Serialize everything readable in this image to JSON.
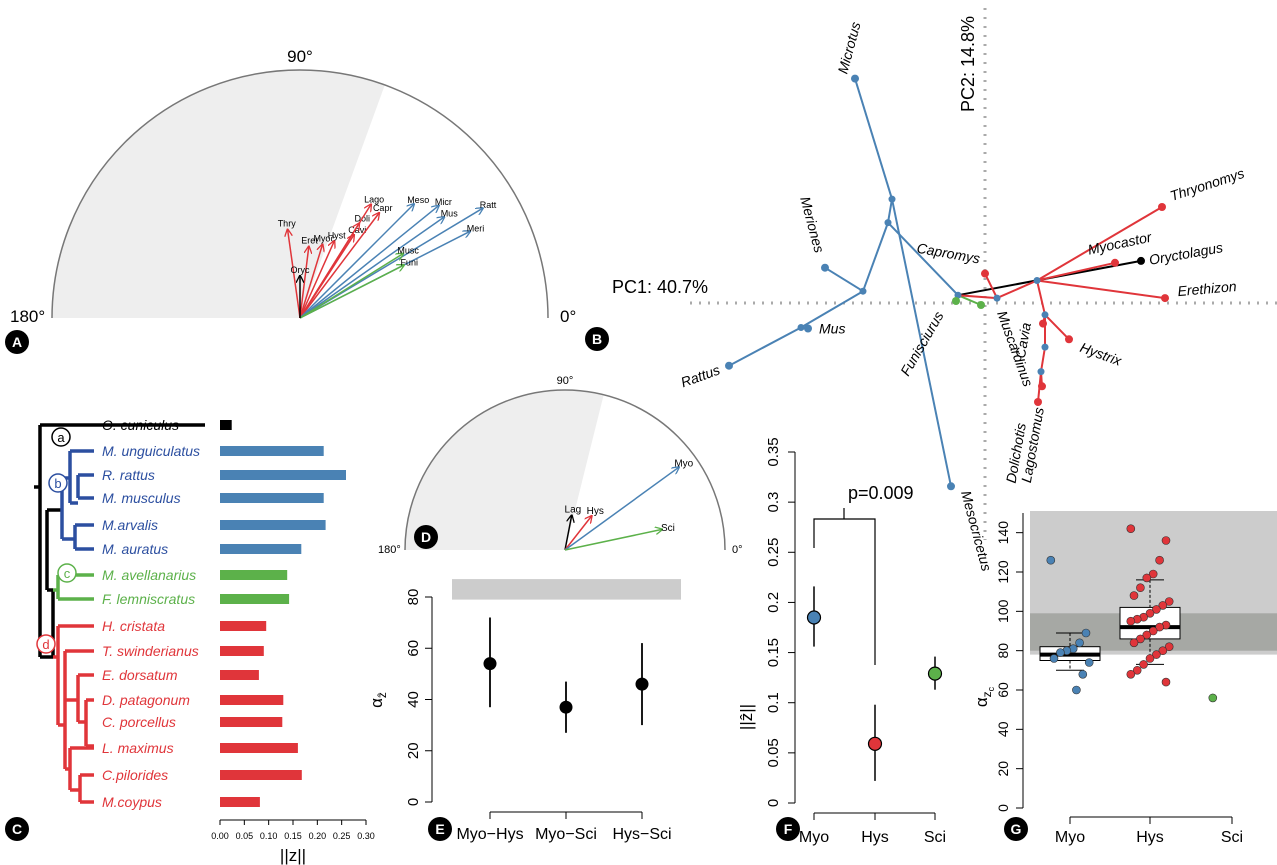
{
  "colors": {
    "myo": "#4a82b4",
    "hys": "#e0353a",
    "sci": "#5cb14a",
    "lag": "#000000",
    "shade": "#eeeeee",
    "grey_band": "#cccccc",
    "grey_dark": "#a6a8a4"
  },
  "panel_labels": [
    "A",
    "B",
    "C",
    "D",
    "E",
    "F",
    "G"
  ],
  "chart_data": [
    {
      "panel": "A",
      "type": "vector-semicircle",
      "angle_labels": {
        "top": "90°",
        "left": "180°",
        "right": "0°"
      },
      "shaded_sector_deg": [
        70,
        180
      ],
      "vectors": [
        {
          "label": "Thry",
          "angle": 98,
          "length": 0.36,
          "group": "hys"
        },
        {
          "label": "Eret",
          "angle": 83,
          "length": 0.29,
          "group": "hys"
        },
        {
          "label": "Myoc",
          "angle": 73,
          "length": 0.31,
          "group": "hys"
        },
        {
          "label": "Hyst",
          "angle": 66,
          "length": 0.34,
          "group": "hys"
        },
        {
          "label": "Cavi",
          "angle": 57,
          "length": 0.4,
          "group": "hys"
        },
        {
          "label": "Doli",
          "angle": 58,
          "length": 0.45,
          "group": "hys"
        },
        {
          "label": "Capr",
          "angle": 53,
          "length": 0.53,
          "group": "hys"
        },
        {
          "label": "Lago",
          "angle": 58,
          "length": 0.54,
          "group": "hys"
        },
        {
          "label": "Meso",
          "angle": 45,
          "length": 0.65,
          "group": "myo"
        },
        {
          "label": "Micr",
          "angle": 39,
          "length": 0.72,
          "group": "myo"
        },
        {
          "label": "Mus",
          "angle": 35,
          "length": 0.71,
          "group": "myo"
        },
        {
          "label": "Ratt",
          "angle": 31,
          "length": 0.86,
          "group": "myo"
        },
        {
          "label": "Meri",
          "angle": 27,
          "length": 0.77,
          "group": "myo"
        },
        {
          "label": "Musc",
          "angle": 32,
          "length": 0.49,
          "group": "sci"
        },
        {
          "label": "Funi",
          "angle": 27,
          "length": 0.47,
          "group": "sci"
        },
        {
          "label": "Oryc",
          "angle": 90,
          "length": 0.17,
          "group": "lag"
        }
      ]
    },
    {
      "panel": "B",
      "type": "scatter",
      "xlabel": "PC1: 40.7%",
      "ylabel": "PC2: 14.8%",
      "points": [
        {
          "name": "Microtus",
          "x": -1.3,
          "y": 2.29,
          "group": "myo"
        },
        {
          "name": "Meriones",
          "x": -1.6,
          "y": 0.36,
          "group": "myo"
        },
        {
          "name": "Mus",
          "x": -1.77,
          "y": -0.26,
          "group": "myo"
        },
        {
          "name": "Rattus",
          "x": -2.56,
          "y": -0.64,
          "group": "myo"
        },
        {
          "name": "Mesocricetus",
          "x": -0.34,
          "y": -1.87,
          "group": "myo"
        },
        {
          "name": "Funisciurus",
          "x": -0.29,
          "y": 0.02,
          "group": "sci"
        },
        {
          "name": "Muscardinus",
          "x": -0.04,
          "y": -0.02,
          "group": "sci"
        },
        {
          "name": "Capromys",
          "x": 0.0,
          "y": 0.3,
          "group": "hys"
        },
        {
          "name": "Thryonomys",
          "x": 1.77,
          "y": 0.98,
          "group": "hys"
        },
        {
          "name": "Myocastor",
          "x": 1.3,
          "y": 0.41,
          "group": "hys"
        },
        {
          "name": "Erethizon",
          "x": 1.8,
          "y": 0.05,
          "group": "hys"
        },
        {
          "name": "Hystrix",
          "x": 0.84,
          "y": -0.37,
          "group": "hys"
        },
        {
          "name": "Cavia",
          "x": 0.58,
          "y": -0.21,
          "group": "hys"
        },
        {
          "name": "Dolichotis",
          "x": 0.53,
          "y": -1.01,
          "group": "hys"
        },
        {
          "name": "Lagostomus",
          "x": 0.57,
          "y": -0.85,
          "group": "hys"
        },
        {
          "name": "Oryctolagus",
          "x": 1.56,
          "y": 0.43,
          "group": "lag"
        }
      ],
      "labeled": [
        "Microtus",
        "Meriones",
        "Mus",
        "Rattus",
        "Mesocricetus",
        "Funisciurus",
        "Muscardinus",
        "Capromys",
        "Thryonomys",
        "Myocastor",
        "Oryctolagus",
        "Erethizon",
        "Hystrix",
        "Cavia",
        "Dolichotis",
        "Lagostomus"
      ]
    },
    {
      "panel": "C",
      "type": "bar",
      "clade_labels": [
        "a",
        "b",
        "c",
        "d"
      ],
      "categories": [
        "O. cuniculus",
        "M. unguiculatus",
        "R. rattus",
        "M. musculus",
        "M.arvalis",
        "M. auratus",
        "M. avellanarius",
        "F. lemniscratus",
        "H. cristata",
        "T. swinderianus",
        "E. dorsatum",
        "D. patagonum",
        "C. porcellus",
        "L. maximus",
        "C.pilorides",
        "M.coypus"
      ],
      "groups": [
        "lag",
        "myo",
        "myo",
        "myo",
        "myo",
        "myo",
        "sci",
        "sci",
        "hys",
        "hys",
        "hys",
        "hys",
        "hys",
        "hys",
        "hys",
        "hys"
      ],
      "values": [
        0.024,
        0.213,
        0.259,
        0.213,
        0.217,
        0.167,
        0.138,
        0.142,
        0.095,
        0.09,
        0.08,
        0.13,
        0.128,
        0.16,
        0.168,
        0.082
      ],
      "xlim": [
        0,
        0.3
      ],
      "xticks": [
        "0.00",
        "0.05",
        "0.10",
        "0.15",
        "0.20",
        "0.25",
        "0.30"
      ],
      "xlabel": "||z||"
    },
    {
      "panel": "D",
      "type": "vector-semicircle",
      "angle_labels": {
        "top": "90°",
        "left": "180°",
        "right": "0°"
      },
      "shaded_sector_deg": [
        76,
        180
      ],
      "vectors": [
        {
          "label": "Lag",
          "angle": 79,
          "length": 0.22,
          "group": "lag"
        },
        {
          "label": "Hys",
          "angle": 52,
          "length": 0.27,
          "group": "hys"
        },
        {
          "label": "Myo",
          "angle": 36,
          "length": 0.88,
          "group": "myo"
        },
        {
          "label": "Sci",
          "angle": 12,
          "length": 0.62,
          "group": "sci"
        }
      ]
    },
    {
      "panel": "E",
      "type": "scatter",
      "categories": [
        "Myo−Hys",
        "Myo−Sci",
        "Hys−Sci"
      ],
      "values": [
        54,
        37,
        46
      ],
      "lower": [
        37,
        27,
        30
      ],
      "upper": [
        72,
        47,
        62
      ],
      "ylim": [
        0,
        90
      ],
      "yticks": [
        0,
        20,
        40,
        60,
        80
      ],
      "band": [
        79,
        87
      ]
    },
    {
      "panel": "F",
      "type": "scatter",
      "categories": [
        "Myo",
        "Hys",
        "Sci"
      ],
      "values": [
        0.185,
        0.059,
        0.129
      ],
      "lower": [
        0.156,
        0.022,
        0.113
      ],
      "upper": [
        0.216,
        0.098,
        0.146
      ],
      "ylim": [
        0,
        0.35
      ],
      "yticks": [
        "0",
        "0.05",
        "0.1",
        "0.15",
        "0.2",
        "0.25",
        "0.3",
        "0.35"
      ],
      "annotation": "p=0.009"
    },
    {
      "panel": "G",
      "type": "box",
      "categories": [
        "Myo",
        "Hys",
        "Sci"
      ],
      "ylim": [
        0,
        150
      ],
      "yticks": [
        0,
        20,
        40,
        60,
        80,
        100,
        120,
        140
      ],
      "bands": {
        "light": [
          78,
          151
        ],
        "dark": [
          80,
          99
        ]
      },
      "boxes": [
        {
          "q1": 75,
          "median": 78,
          "q3": 82,
          "whisker_low": 70,
          "whisker_high": 89
        },
        {
          "q1": 86,
          "median": 92,
          "q3": 102,
          "whisker_low": 73,
          "whisker_high": 116
        },
        null
      ],
      "points": [
        [
          126,
          89,
          84,
          81,
          80,
          79,
          76,
          74,
          68,
          60
        ],
        [
          142,
          136,
          126,
          119,
          117,
          112,
          108,
          105,
          103,
          101,
          99,
          97,
          96,
          95,
          93,
          92,
          90,
          88,
          86,
          84,
          82,
          80,
          78,
          76,
          73,
          70,
          68,
          64
        ],
        [
          56
        ]
      ]
    }
  ]
}
